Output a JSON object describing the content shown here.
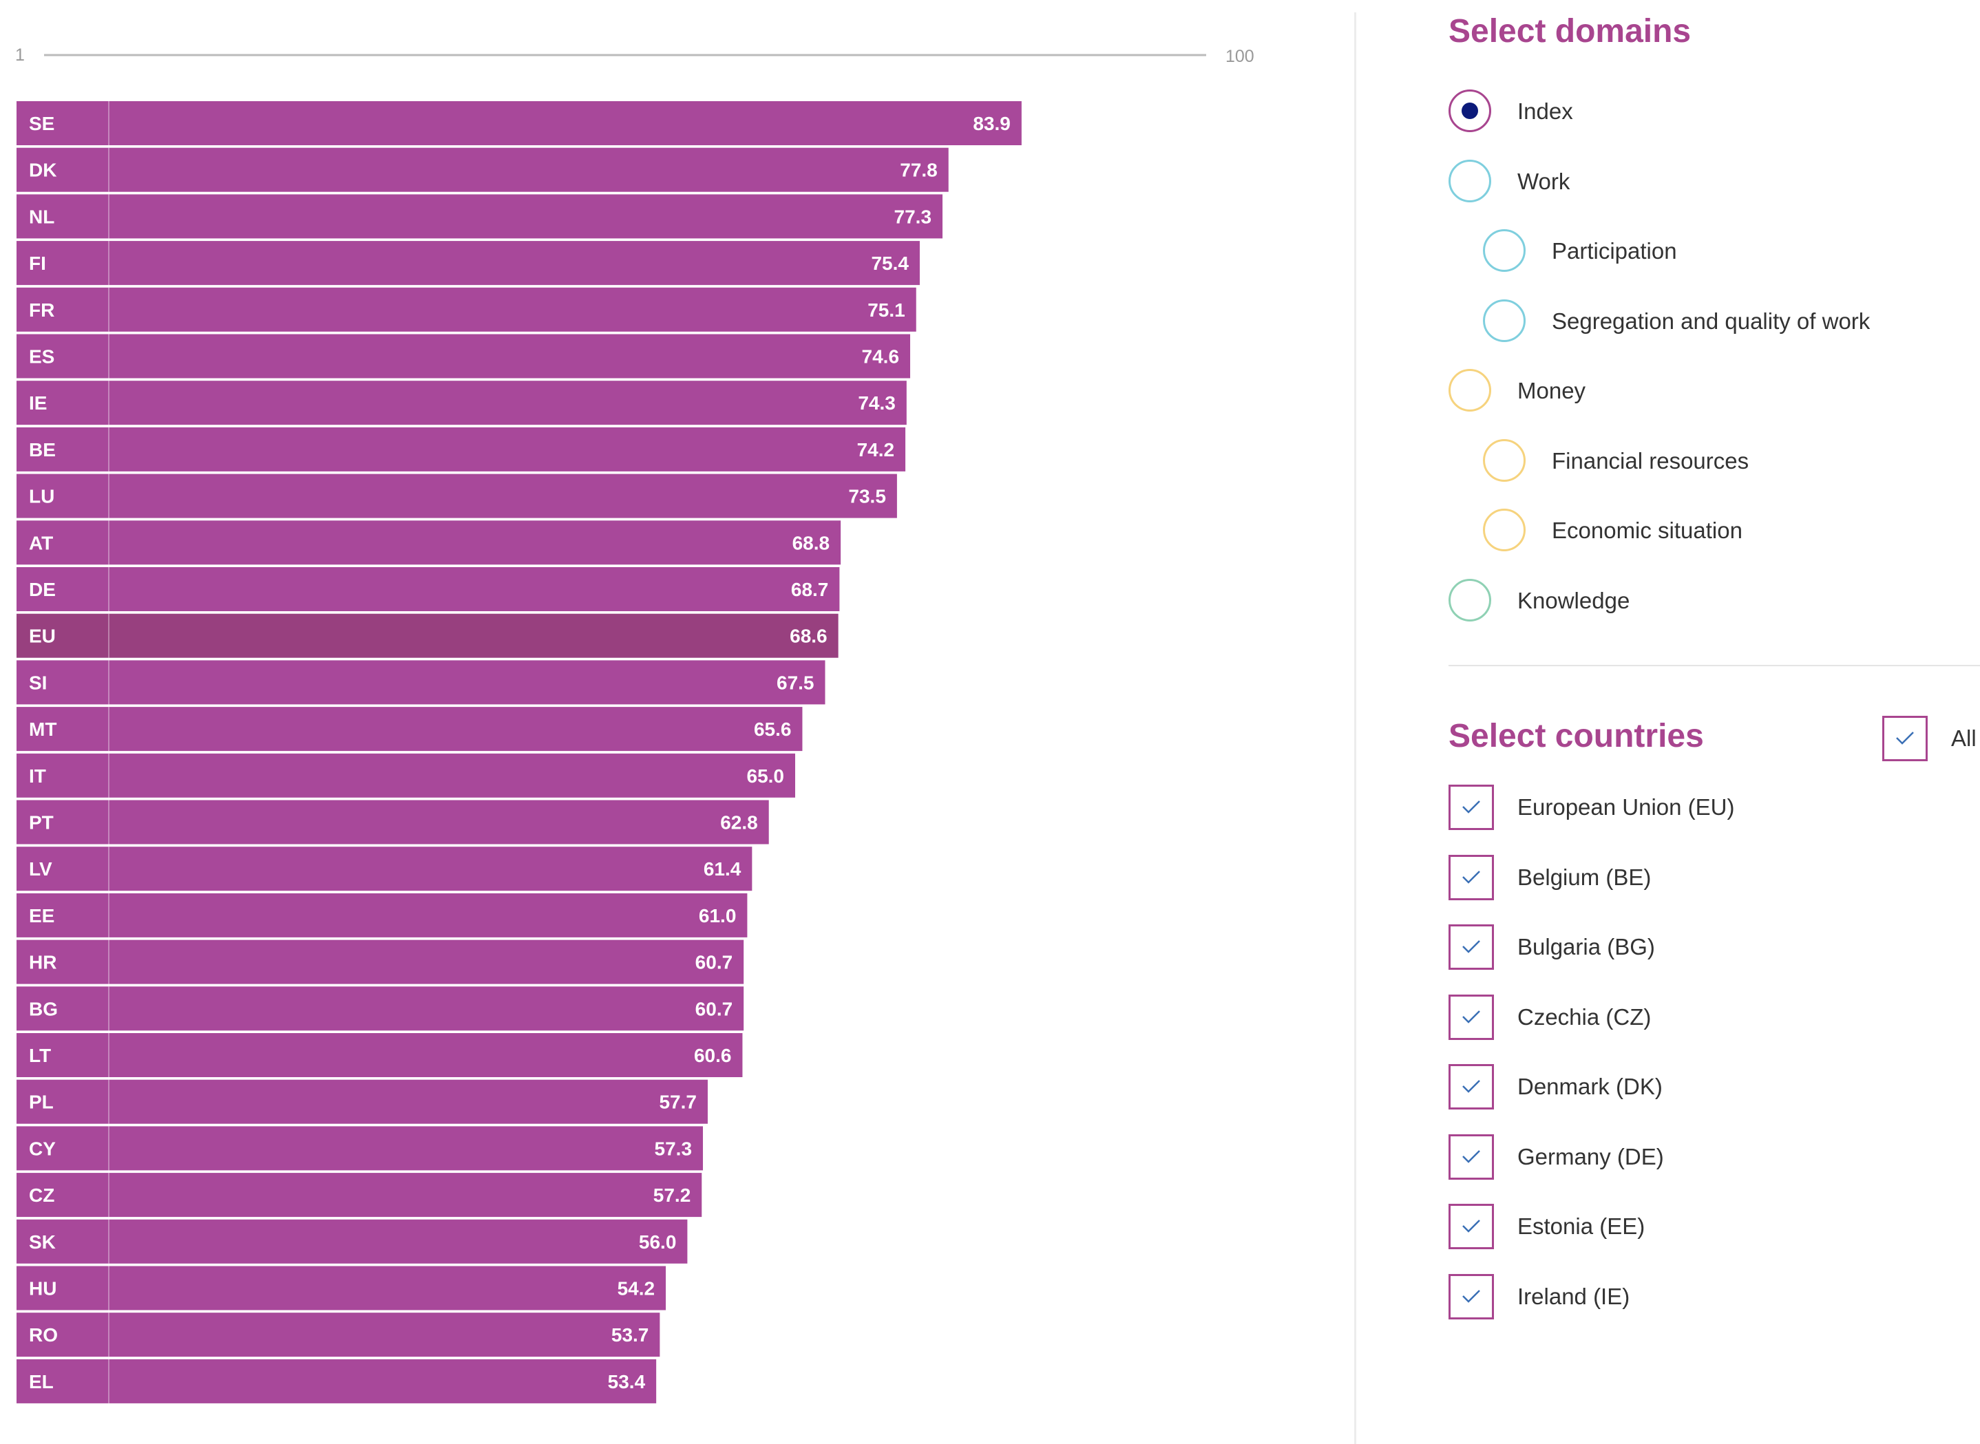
{
  "chart_data": {
    "type": "bar",
    "orientation": "horizontal",
    "axis_min_label": "1",
    "axis_max_label": "100",
    "xlim": [
      0,
      100
    ],
    "highlight_category": "EU",
    "categories": [
      "SE",
      "DK",
      "NL",
      "FI",
      "FR",
      "ES",
      "IE",
      "BE",
      "LU",
      "AT",
      "DE",
      "EU",
      "SI",
      "MT",
      "IT",
      "PT",
      "LV",
      "EE",
      "HR",
      "BG",
      "LT",
      "PL",
      "CY",
      "CZ",
      "SK",
      "HU",
      "RO",
      "EL"
    ],
    "value_labels": [
      "83.9",
      "77.8",
      "77.3",
      "75.4",
      "75.1",
      "74.6",
      "74.3",
      "74.2",
      "73.5",
      "68.8",
      "68.7",
      "68.6",
      "67.5",
      "65.6",
      "65.0",
      "62.8",
      "61.4",
      "61.0",
      "60.7",
      "60.7",
      "60.6",
      "57.7",
      "57.3",
      "57.2",
      "56.0",
      "54.2",
      "53.7",
      "53.4"
    ],
    "values": [
      83.9,
      77.8,
      77.3,
      75.4,
      75.1,
      74.6,
      74.3,
      74.2,
      73.5,
      68.8,
      68.7,
      68.6,
      67.5,
      65.6,
      65.0,
      62.8,
      61.4,
      61.0,
      60.7,
      60.7,
      60.6,
      57.7,
      57.3,
      57.2,
      56.0,
      54.2,
      53.7,
      53.4
    ],
    "colors": {
      "bar": "#a8489a",
      "highlight_bar": "#98407f",
      "axis_line": "#bbbbbb"
    }
  },
  "domains": {
    "title": "Select domains",
    "items": [
      {
        "label": "Index",
        "selected": true,
        "indent": false,
        "color": "#a8458f"
      },
      {
        "label": "Work",
        "selected": false,
        "indent": false,
        "color": "#7fcfde"
      },
      {
        "label": "Participation",
        "selected": false,
        "indent": true,
        "color": "#7fcfde"
      },
      {
        "label": "Segregation and quality of work",
        "selected": false,
        "indent": true,
        "color": "#7fcfde"
      },
      {
        "label": "Money",
        "selected": false,
        "indent": false,
        "color": "#f6d37e"
      },
      {
        "label": "Financial resources",
        "selected": false,
        "indent": true,
        "color": "#f6d37e"
      },
      {
        "label": "Economic situation",
        "selected": false,
        "indent": true,
        "color": "#f6d37e"
      },
      {
        "label": "Knowledge",
        "selected": false,
        "indent": false,
        "color": "#8fd1b4"
      }
    ]
  },
  "countries": {
    "title": "Select countries",
    "all_label": "All",
    "all_checked": true,
    "items": [
      {
        "label": "European Union (EU)",
        "checked": true
      },
      {
        "label": "Belgium (BE)",
        "checked": true
      },
      {
        "label": "Bulgaria (BG)",
        "checked": true
      },
      {
        "label": "Czechia (CZ)",
        "checked": true
      },
      {
        "label": "Denmark (DK)",
        "checked": true
      },
      {
        "label": "Germany (DE)",
        "checked": true
      },
      {
        "label": "Estonia (EE)",
        "checked": true
      },
      {
        "label": "Ireland (IE)",
        "checked": true
      }
    ]
  }
}
